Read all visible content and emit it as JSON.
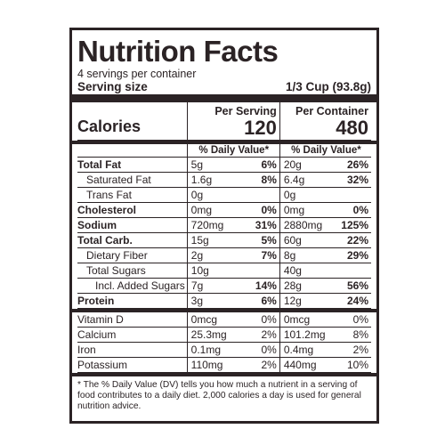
{
  "title": "Nutrition Facts",
  "servings_per_container": "4 servings per container",
  "serving_size_label": "Serving size",
  "serving_size_value": "1/3 Cup (93.8g)",
  "calories_label": "Calories",
  "per_serving_label": "Per Serving",
  "per_container_label": "Per Container",
  "calories_serving": "120",
  "calories_container": "480",
  "dv_header": "% Daily Value*",
  "nutrients": [
    {
      "name": "Total Fat",
      "s_amt": "5g",
      "s_dv": "6%",
      "c_amt": "20g",
      "c_dv": "26%"
    },
    {
      "name": "Saturated Fat",
      "s_amt": "1.6g",
      "s_dv": "8%",
      "c_amt": "6.4g",
      "c_dv": "32%"
    },
    {
      "name": "Trans Fat",
      "s_amt": "0g",
      "s_dv": "",
      "c_amt": "0g",
      "c_dv": ""
    },
    {
      "name": "Cholesterol",
      "s_amt": "0mg",
      "s_dv": "0%",
      "c_amt": "0mg",
      "c_dv": "0%"
    },
    {
      "name": "Sodium",
      "s_amt": "720mg",
      "s_dv": "31%",
      "c_amt": "2880mg",
      "c_dv": "125%"
    },
    {
      "name": "Total Carb.",
      "s_amt": "15g",
      "s_dv": "5%",
      "c_amt": "60g",
      "c_dv": "22%"
    },
    {
      "name": "Dietary Fiber",
      "s_amt": "2g",
      "s_dv": "7%",
      "c_amt": "8g",
      "c_dv": "29%"
    },
    {
      "name": "Total Sugars",
      "s_amt": "10g",
      "s_dv": "",
      "c_amt": "40g",
      "c_dv": ""
    },
    {
      "name": "Incl. Added Sugars",
      "s_amt": "7g",
      "s_dv": "14%",
      "c_amt": "28g",
      "c_dv": "56%"
    },
    {
      "name": "Protein",
      "s_amt": "3g",
      "s_dv": "6%",
      "c_amt": "12g",
      "c_dv": "24%"
    }
  ],
  "vitamins": [
    {
      "name": "Vitamin D",
      "s_amt": "0mcg",
      "s_dv": "0%",
      "c_amt": "0mcg",
      "c_dv": "0%"
    },
    {
      "name": "Calcium",
      "s_amt": "25.3mg",
      "s_dv": "2%",
      "c_amt": "101.2mg",
      "c_dv": "8%"
    },
    {
      "name": "Iron",
      "s_amt": "0.1mg",
      "s_dv": "0%",
      "c_amt": "0.4mg",
      "c_dv": "2%"
    },
    {
      "name": "Potassium",
      "s_amt": "110mg",
      "s_dv": "2%",
      "c_amt": "440mg",
      "c_dv": "10%"
    }
  ],
  "footnote": "* The % Daily Value (DV) tells you how much a nutrient in a serving of food contributes to a daily diet. 2,000 calories a day is used for general nutrition advice."
}
